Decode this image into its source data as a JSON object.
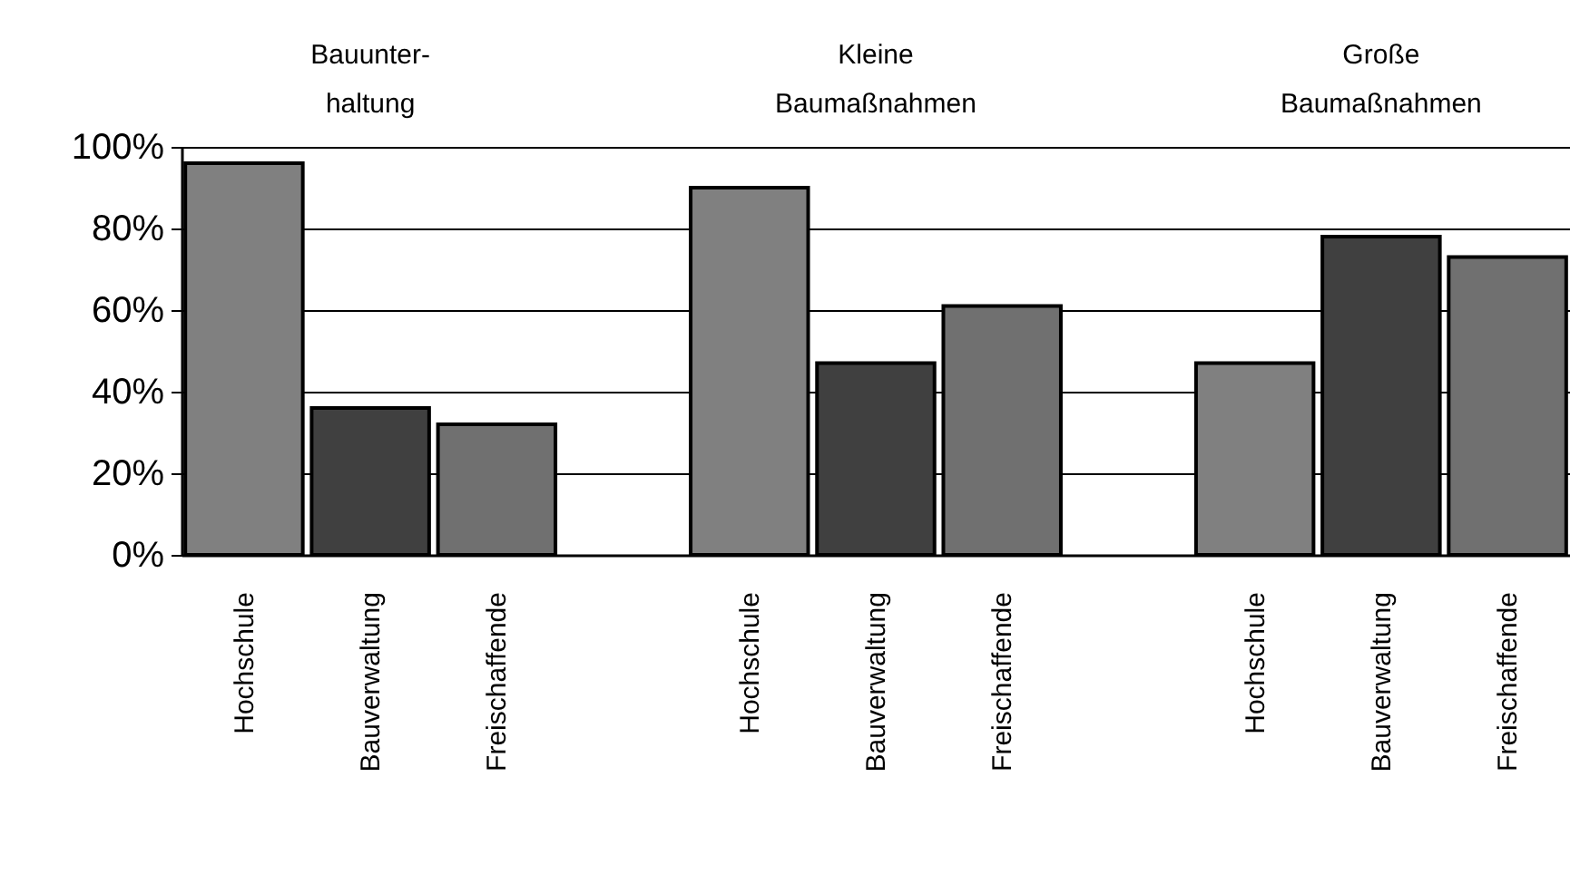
{
  "chart_data": {
    "type": "bar",
    "categories": [
      "Hochschule",
      "Bauverwaltung",
      "Freischaffende",
      null,
      "Hochschule",
      "Bauverwaltung",
      "Freischaffende",
      null,
      "Hochschule",
      "Bauverwaltung",
      "Freischaffende"
    ],
    "values": [
      96,
      36,
      32,
      null,
      90,
      47,
      61,
      null,
      47,
      78,
      73
    ],
    "colors": [
      "#808080",
      "#404040",
      "#707070",
      null,
      "#808080",
      "#404040",
      "#707070",
      null,
      "#808080",
      "#404040",
      "#707070"
    ],
    "annotations": [
      "Bauunter-\nhaltung",
      "Kleine\nBaumaßnahmen",
      "Große\nBaumaßnahmen"
    ],
    "ylim": [
      0,
      100
    ],
    "yticks": [
      {
        "value": 0,
        "label": "0%"
      },
      {
        "value": 20,
        "label": "20%"
      },
      {
        "value": 40,
        "label": "40%"
      },
      {
        "value": 60,
        "label": "60%"
      },
      {
        "value": 80,
        "label": "80%"
      },
      {
        "value": 100,
        "label": "100%"
      }
    ],
    "grid": "y"
  }
}
